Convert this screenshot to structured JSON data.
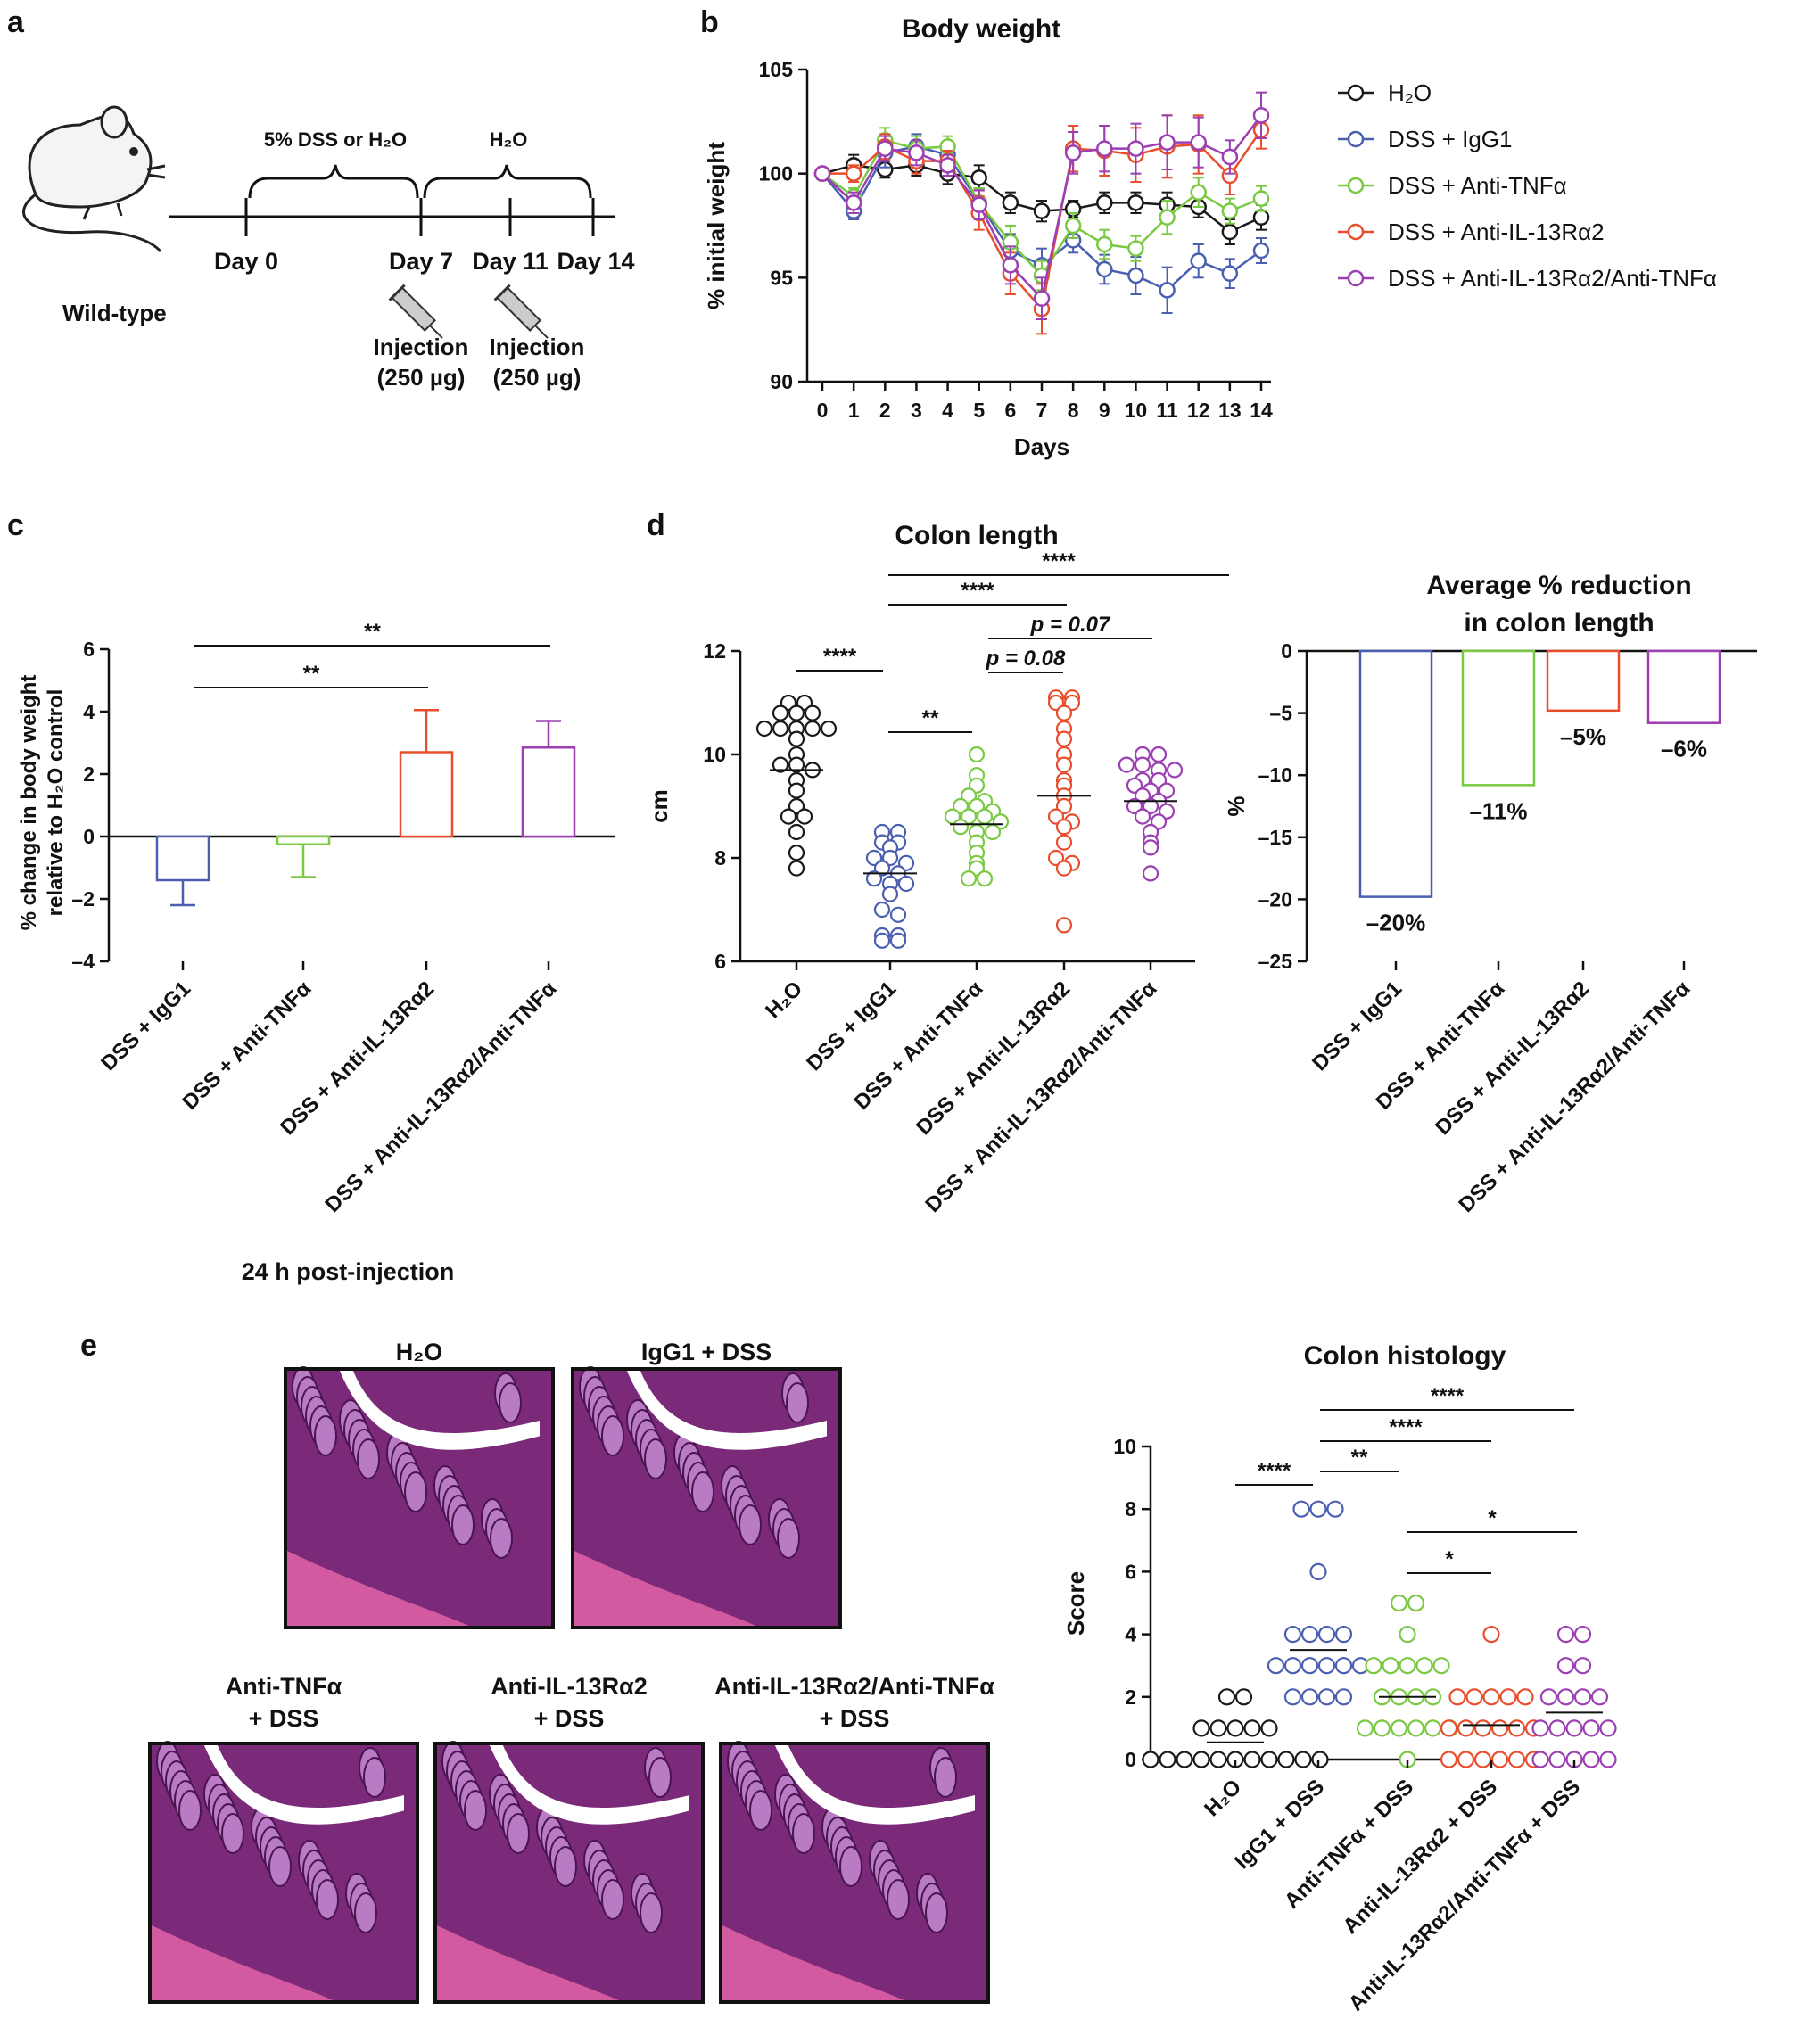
{
  "panels": {
    "a": {
      "letter": "a",
      "mouse_label": "Wild-type",
      "phase1": "5% DSS or H₂O",
      "phase2": "H₂O",
      "days": [
        "Day 0",
        "Day 7",
        "Day 11",
        "Day 14"
      ],
      "injection_label": "Injection",
      "injection_dose": "(250 µg)"
    },
    "b": {
      "letter": "b"
    },
    "c": {
      "letter": "c",
      "footer": "24 h post-injection"
    },
    "d": {
      "letter": "d"
    },
    "e": {
      "letter": "e",
      "histology": [
        {
          "line1": "H₂O",
          "line2": ""
        },
        {
          "line1": "IgG1 + DSS",
          "line2": ""
        },
        {
          "line1": "Anti-TNFα",
          "line2": "+ DSS"
        },
        {
          "line1": "Anti-IL-13Rα2",
          "line2": "+ DSS"
        },
        {
          "line1": "Anti-IL-13Rα2/Anti-TNFα",
          "line2": "+ DSS"
        }
      ]
    }
  },
  "colors": {
    "H2O": "#1a1a1a",
    "IgG1": "#4a5fb0",
    "TNF": "#7ac943",
    "IL13": "#e84e2c",
    "Combo": "#9b3fb3"
  },
  "chart_data": [
    {
      "id": "b",
      "type": "line",
      "title": "Body weight",
      "xlabel": "Days",
      "ylabel": "% initial weight",
      "xlim": [
        0,
        14
      ],
      "ylim": [
        90,
        105
      ],
      "yticks": [
        90,
        95,
        100,
        105
      ],
      "x": [
        0,
        1,
        2,
        3,
        4,
        5,
        6,
        7,
        8,
        9,
        10,
        11,
        12,
        13,
        14
      ],
      "series": [
        {
          "name": "H₂O",
          "color_key": "H2O",
          "values": [
            100,
            100.4,
            100.2,
            100.4,
            100.0,
            99.8,
            98.6,
            98.2,
            98.3,
            98.6,
            98.6,
            98.5,
            98.4,
            97.2,
            97.9
          ],
          "errors": [
            0,
            0.5,
            0.4,
            0.5,
            0.5,
            0.6,
            0.5,
            0.5,
            0.4,
            0.5,
            0.5,
            0.6,
            0.5,
            0.6,
            0.6
          ]
        },
        {
          "name": "DSS + IgG1",
          "color_key": "IgG1",
          "values": [
            100,
            98.2,
            101.0,
            101.3,
            100.9,
            98.6,
            96.3,
            95.6,
            96.8,
            95.4,
            95.1,
            94.4,
            95.8,
            95.2,
            96.3
          ],
          "errors": [
            0,
            0.4,
            0.7,
            0.6,
            0.5,
            0.7,
            0.8,
            0.8,
            0.6,
            0.7,
            0.9,
            1.1,
            0.8,
            0.7,
            0.6
          ]
        },
        {
          "name": "DSS + Anti-TNFα",
          "color_key": "TNF",
          "values": [
            100,
            98.9,
            101.6,
            101.2,
            101.3,
            98.6,
            96.7,
            95.1,
            97.5,
            96.6,
            96.4,
            97.9,
            99.1,
            98.2,
            98.8
          ],
          "errors": [
            0,
            0.4,
            0.6,
            0.6,
            0.5,
            0.7,
            0.8,
            0.7,
            0.6,
            0.7,
            0.6,
            0.8,
            0.7,
            0.6,
            0.6
          ]
        },
        {
          "name": "DSS + Anti-IL-13Rα2",
          "color_key": "IL13",
          "values": [
            100,
            100.0,
            101.3,
            100.6,
            100.6,
            98.1,
            95.2,
            93.5,
            101.2,
            101.1,
            100.9,
            101.3,
            101.4,
            99.9,
            102.1
          ],
          "errors": [
            0,
            0.4,
            0.6,
            0.6,
            0.5,
            0.8,
            1.0,
            1.2,
            1.1,
            1.2,
            1.3,
            1.5,
            1.4,
            0.9,
            0.9
          ]
        },
        {
          "name": "DSS + Anti-IL-13Rα2/Anti-TNFα",
          "color_key": "Combo",
          "values": [
            100,
            98.6,
            101.2,
            101.0,
            100.4,
            98.5,
            95.6,
            94.0,
            101.0,
            101.2,
            101.2,
            101.5,
            101.5,
            100.8,
            102.8
          ],
          "errors": [
            0,
            0.5,
            0.6,
            0.6,
            0.5,
            0.7,
            0.9,
            1.0,
            1.0,
            1.1,
            1.2,
            1.3,
            1.2,
            0.8,
            1.1
          ]
        }
      ],
      "legend": [
        "H₂O",
        "DSS + IgG1",
        "DSS + Anti-TNFα",
        "DSS + Anti-IL-13Rα2",
        "DSS + Anti-IL-13Rα2/Anti-TNFα"
      ]
    },
    {
      "id": "c",
      "type": "bar",
      "ylabel": "% change in body weight relative to H₂O control",
      "ylim": [
        -4,
        6
      ],
      "yticks": [
        -4,
        -2,
        0,
        2,
        4,
        6
      ],
      "categories": [
        "DSS + IgG1",
        "DSS + Anti-TNFα",
        "DSS + Anti-IL-13Rα2",
        "DSS + Anti-IL-13Rα2/Anti-TNFα"
      ],
      "color_keys": [
        "IgG1",
        "TNF",
        "IL13",
        "Combo"
      ],
      "values": [
        -1.4,
        -0.25,
        2.7,
        2.85
      ],
      "errors": [
        0.8,
        1.05,
        1.35,
        0.85
      ],
      "significance": [
        {
          "from": 0,
          "to": 3,
          "label": "**"
        },
        {
          "from": 0,
          "to": 2,
          "label": "**"
        }
      ]
    },
    {
      "id": "d1",
      "type": "scatter",
      "title": "Colon length",
      "ylabel": "cm",
      "ylim": [
        6,
        12
      ],
      "yticks": [
        6,
        8,
        10,
        12
      ],
      "categories": [
        "H₂O",
        "DSS + IgG1",
        "DSS + Anti-TNFα",
        "DSS + Anti-IL-13Rα2",
        "DSS + Anti-IL-13Rα2/Anti-TNFα"
      ],
      "color_keys": [
        "H2O",
        "IgG1",
        "TNF",
        "IL13",
        "Combo"
      ],
      "groups": [
        [
          11.0,
          11.0,
          10.8,
          10.8,
          10.8,
          10.5,
          10.5,
          10.5,
          10.5,
          10.5,
          10.3,
          10.0,
          9.8,
          9.8,
          9.7,
          9.5,
          9.3,
          9.0,
          8.8,
          8.8,
          8.5,
          8.1,
          7.8
        ],
        [
          8.5,
          8.5,
          8.3,
          8.3,
          8.2,
          8.0,
          8.0,
          7.9,
          7.8,
          7.7,
          7.6,
          7.5,
          7.5,
          7.3,
          7.0,
          6.9,
          6.5,
          6.5,
          6.4,
          6.4
        ],
        [
          10.0,
          9.6,
          9.4,
          9.2,
          9.1,
          9.0,
          9.0,
          8.9,
          8.8,
          8.8,
          8.8,
          8.7,
          8.6,
          8.5,
          8.5,
          8.3,
          8.1,
          7.9,
          7.8,
          7.6,
          7.6
        ],
        [
          11.1,
          11.1,
          11.0,
          11.0,
          10.8,
          10.5,
          10.3,
          10.0,
          9.8,
          9.5,
          9.4,
          9.2,
          9.0,
          8.8,
          8.7,
          8.6,
          8.3,
          8.0,
          7.9,
          7.8,
          6.7
        ],
        [
          10.0,
          10.0,
          9.8,
          9.8,
          9.7,
          9.7,
          9.5,
          9.5,
          9.4,
          9.3,
          9.3,
          9.2,
          9.1,
          9.0,
          9.0,
          8.9,
          8.8,
          8.7,
          8.5,
          8.3,
          8.2,
          7.7
        ]
      ],
      "means": [
        9.7,
        7.7,
        8.65,
        9.2,
        9.1
      ],
      "significance": [
        {
          "from": 1,
          "to": 4,
          "label": "****"
        },
        {
          "from": 1,
          "to": 3,
          "label": "****"
        },
        {
          "from": 2,
          "to": 4,
          "label": "p = 0.07"
        },
        {
          "from": 2,
          "to": 3,
          "label": "p = 0.08"
        },
        {
          "from": 0,
          "to": 1,
          "label": "****"
        },
        {
          "from": 1,
          "to": 2,
          "label": "**"
        }
      ]
    },
    {
      "id": "d2",
      "type": "bar",
      "title": "Average % reduction in colon length",
      "title_lines": [
        "Average % reduction",
        "in colon length"
      ],
      "ylabel": "%",
      "ylim": [
        -25,
        0
      ],
      "yticks": [
        0,
        -5,
        -10,
        -15,
        -20,
        -25
      ],
      "categories": [
        "DSS + IgG1",
        "DSS + Anti-TNFα",
        "DSS + Anti-IL-13Rα2",
        "DSS + Anti-IL-13Rα2/Anti-TNFα"
      ],
      "color_keys": [
        "IgG1",
        "TNF",
        "IL13",
        "Combo"
      ],
      "values": [
        -19.8,
        -10.8,
        -4.8,
        -5.8
      ],
      "data_labels": [
        "–20%",
        "–11%",
        "–5%",
        "–6%"
      ]
    },
    {
      "id": "e",
      "type": "scatter",
      "title": "Colon histology",
      "ylabel": "Score",
      "ylim": [
        0,
        10
      ],
      "yticks": [
        0,
        2,
        4,
        6,
        8,
        10
      ],
      "categories": [
        "H₂O",
        "IgG1 + DSS",
        "Anti-TNFα + DSS",
        "Anti-IL-13Rα2 + DSS",
        "Anti-IL-13Rα2/Anti-TNFα + DSS"
      ],
      "color_keys": [
        "H2O",
        "IgG1",
        "TNF",
        "IL13",
        "Combo"
      ],
      "groups": [
        [
          2,
          2,
          1,
          1,
          1,
          1,
          1,
          0,
          0,
          0,
          0,
          0,
          0,
          0,
          0,
          0,
          0,
          0
        ],
        [
          8,
          8,
          8,
          6,
          4,
          4,
          4,
          4,
          3,
          3,
          3,
          3,
          3,
          3,
          2,
          2,
          2,
          2
        ],
        [
          5,
          5,
          4,
          3,
          3,
          3,
          3,
          3,
          2,
          2,
          2,
          2,
          1,
          1,
          1,
          1,
          1,
          1,
          0
        ],
        [
          4,
          2,
          2,
          2,
          2,
          2,
          1,
          1,
          1,
          1,
          1,
          1,
          0,
          0,
          0,
          0,
          0,
          0
        ],
        [
          4,
          4,
          3,
          3,
          2,
          2,
          2,
          2,
          1,
          1,
          1,
          1,
          1,
          0,
          0,
          0,
          0,
          0
        ]
      ],
      "means": [
        0.55,
        3.5,
        2.0,
        1.1,
        1.5
      ],
      "significance": [
        {
          "from": 1,
          "to": 4,
          "label": "****"
        },
        {
          "from": 1,
          "to": 3,
          "label": "****"
        },
        {
          "from": 0,
          "to": 1,
          "label": "****"
        },
        {
          "from": 1,
          "to": 2,
          "label": "**"
        },
        {
          "from": 2,
          "to": 4,
          "label": "*"
        },
        {
          "from": 2,
          "to": 3,
          "label": "*"
        }
      ]
    }
  ]
}
